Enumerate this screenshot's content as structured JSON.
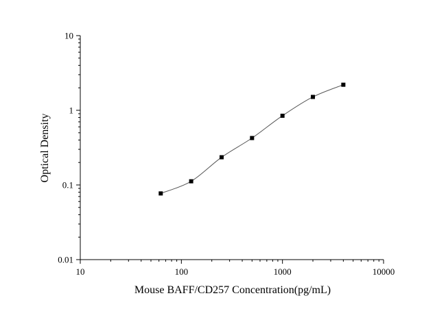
{
  "chart_data": {
    "type": "scatter",
    "title": "",
    "xlabel": "Mouse BAFF/CD257 Concentration(pg/mL)",
    "ylabel": "Optical Density",
    "x_scale": "log",
    "y_scale": "log",
    "xlim": [
      10,
      10000
    ],
    "ylim": [
      0.01,
      10
    ],
    "x_ticks": [
      "10",
      "100",
      "1000",
      "10000"
    ],
    "y_ticks": [
      "0.01",
      "0.1",
      "1",
      "10"
    ],
    "grid": false,
    "legend": "none",
    "series": [
      {
        "marker": "square",
        "fit_line": true,
        "x": [
          62.5,
          125,
          250,
          500,
          1000,
          2000,
          4000
        ],
        "y": [
          0.077,
          0.112,
          0.235,
          0.425,
          0.845,
          1.51,
          2.2
        ]
      }
    ],
    "colors": {
      "marker": "#000000",
      "line": "#555555",
      "axis": "#000000"
    }
  }
}
